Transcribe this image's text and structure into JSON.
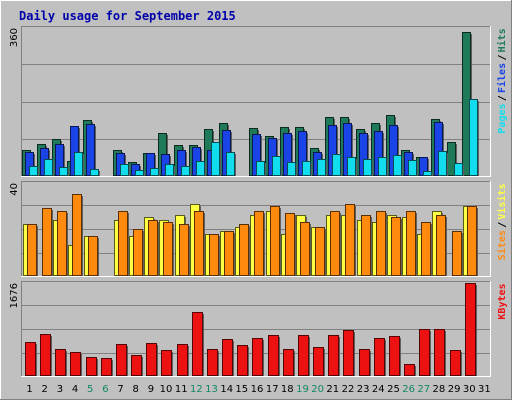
{
  "chart_data": {
    "type": "bar",
    "title": "Daily usage for September 2015",
    "categories": [
      "1",
      "2",
      "3",
      "4",
      "5",
      "6",
      "7",
      "8",
      "9",
      "10",
      "11",
      "12",
      "13",
      "14",
      "15",
      "16",
      "17",
      "18",
      "19",
      "20",
      "21",
      "22",
      "23",
      "24",
      "25",
      "26",
      "27",
      "28",
      "29",
      "30",
      "31"
    ],
    "weekend_days": [
      "5",
      "6",
      "12",
      "13",
      "19",
      "20",
      "26",
      "27"
    ],
    "panels": [
      {
        "ymax_label": "360",
        "ymax": 360,
        "side_labels": [
          "Pages",
          "Files",
          "Hits"
        ],
        "series": [
          {
            "name": "Hits",
            "color": "#1f7a5a",
            "values": [
              61,
              76,
              87,
              34,
              134,
              0,
              62,
              32,
              53,
              104,
              73,
              73,
              112,
              127,
              0,
              115,
              95,
              118,
              118,
              65,
              142,
              143,
              112,
              127,
              147,
              60,
              45,
              137,
              82,
              350
            ]
          },
          {
            "name": "Files",
            "color": "#1a44e6",
            "values": [
              56,
              66,
              76,
              120,
              124,
              0,
              53,
              28,
              53,
              51,
              62,
              68,
              62,
              111,
              0,
              101,
              91,
              103,
              107,
              56,
              122,
              128,
              102,
              108,
              122,
              56,
              45,
              131,
              0,
              0
            ]
          },
          {
            "name": "Pages",
            "color": "#11ddee",
            "values": [
              21,
              38,
              20,
              57,
              15,
              0,
              27,
              12,
              18,
              28,
              22,
              35,
              80,
              56,
              0,
              35,
              47,
              33,
              34,
              38,
              52,
              43,
              38,
              44,
              49,
              37,
              11,
              59,
              29,
              186
            ]
          }
        ]
      },
      {
        "ymax_label": "40",
        "ymax": 40,
        "side_labels": [
          "Sites",
          "Visits"
        ],
        "series": [
          {
            "name": "Visits",
            "color": "#ffff44",
            "values": [
              22,
              0,
              24,
              13,
              17,
              0,
              24,
              17,
              25,
              24,
              26,
              31,
              18,
              19,
              21,
              26,
              28,
              18,
              26,
              21,
              26,
              26,
              24,
              23,
              26,
              25,
              18,
              28,
              0,
              30
            ]
          },
          {
            "name": "Sites",
            "color": "#ff8a0e",
            "values": [
              22,
              29,
              28,
              35,
              17,
              0,
              28,
              20,
              24,
              23,
              22,
              28,
              18,
              19,
              22,
              28,
              30,
              27,
              23,
              21,
              28,
              31,
              26,
              28,
              25,
              28,
              23,
              26,
              19,
              30
            ]
          }
        ]
      },
      {
        "ymax_label": "1676",
        "ymax": 1676,
        "side_labels": [
          "KBytes"
        ],
        "series": [
          {
            "name": "KBytes",
            "color": "#ee1111",
            "values": [
              600,
              750,
              470,
              420,
              320,
              310,
              560,
              360,
              580,
              455,
              570,
              1150,
              480,
              660,
              555,
              670,
              730,
              480,
              720,
              515,
              720,
              820,
              475,
              665,
              710,
              200,
              830,
              830,
              460,
              1676
            ]
          }
        ]
      }
    ],
    "colors": {
      "background": "#c0c0c0",
      "title": "#0000aa",
      "weekday_label": "#000000",
      "weekend_label": "#118866",
      "grid": "#808080",
      "hits_label": "#1f7a5a",
      "files_label": "#1a44e6",
      "pages_label": "#11ddee",
      "sites_label": "#ff8a0e",
      "visits_label": "#ffff44",
      "kbytes_label": "#ee1111"
    }
  }
}
